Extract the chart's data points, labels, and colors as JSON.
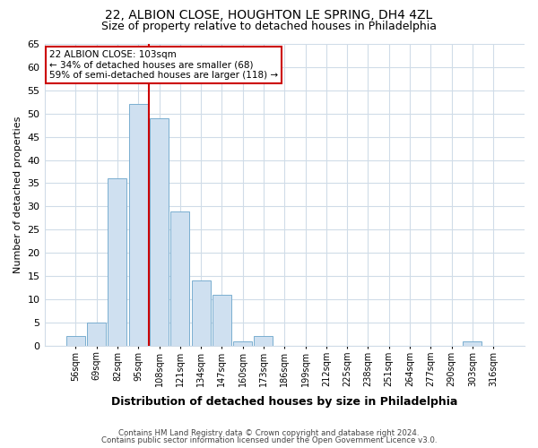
{
  "title1": "22, ALBION CLOSE, HOUGHTON LE SPRING, DH4 4ZL",
  "title2": "Size of property relative to detached houses in Philadelphia",
  "xlabel": "Distribution of detached houses by size in Philadelphia",
  "ylabel": "Number of detached properties",
  "categories": [
    "56sqm",
    "69sqm",
    "82sqm",
    "95sqm",
    "108sqm",
    "121sqm",
    "134sqm",
    "147sqm",
    "160sqm",
    "173sqm",
    "186sqm",
    "199sqm",
    "212sqm",
    "225sqm",
    "238sqm",
    "251sqm",
    "264sqm",
    "277sqm",
    "290sqm",
    "303sqm",
    "316sqm"
  ],
  "values": [
    2,
    5,
    36,
    52,
    49,
    29,
    14,
    11,
    1,
    2,
    0,
    0,
    0,
    0,
    0,
    0,
    0,
    0,
    0,
    1,
    0
  ],
  "bar_color": "#cfe0f0",
  "bar_edge_color": "#7aaed0",
  "vline_x": 3.5,
  "vline_color": "#cc0000",
  "annotation_text": "22 ALBION CLOSE: 103sqm\n← 34% of detached houses are smaller (68)\n59% of semi-detached houses are larger (118) →",
  "annotation_box_color": "white",
  "annotation_box_edge_color": "#cc0000",
  "ylim": [
    0,
    65
  ],
  "yticks": [
    0,
    5,
    10,
    15,
    20,
    25,
    30,
    35,
    40,
    45,
    50,
    55,
    60,
    65
  ],
  "footer1": "Contains HM Land Registry data © Crown copyright and database right 2024.",
  "footer2": "Contains public sector information licensed under the Open Government Licence v3.0.",
  "bg_color": "#ffffff",
  "plot_bg_color": "#ffffff",
  "grid_color": "#d0dce8",
  "title_fontsize": 10,
  "subtitle_fontsize": 9
}
